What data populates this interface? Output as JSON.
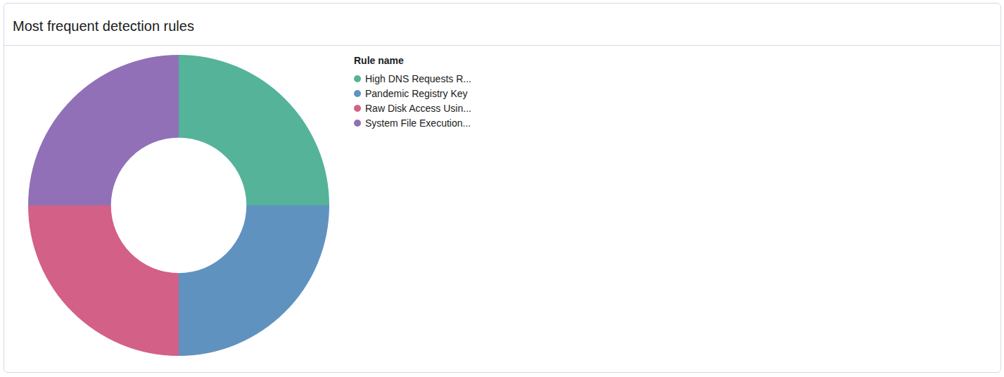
{
  "chart_data": {
    "type": "doughnut",
    "title": "Most frequent detection rules",
    "legend_title": "Rule name",
    "categories": [
      "High DNS Requests R...",
      "Pandemic Registry Key",
      "Raw Disk Access Usin...",
      "System File Execution..."
    ],
    "values": [
      25,
      25,
      25,
      25
    ],
    "colors": [
      "#54b399",
      "#6092c0",
      "#d36086",
      "#9170b8"
    ],
    "legend": "right"
  }
}
